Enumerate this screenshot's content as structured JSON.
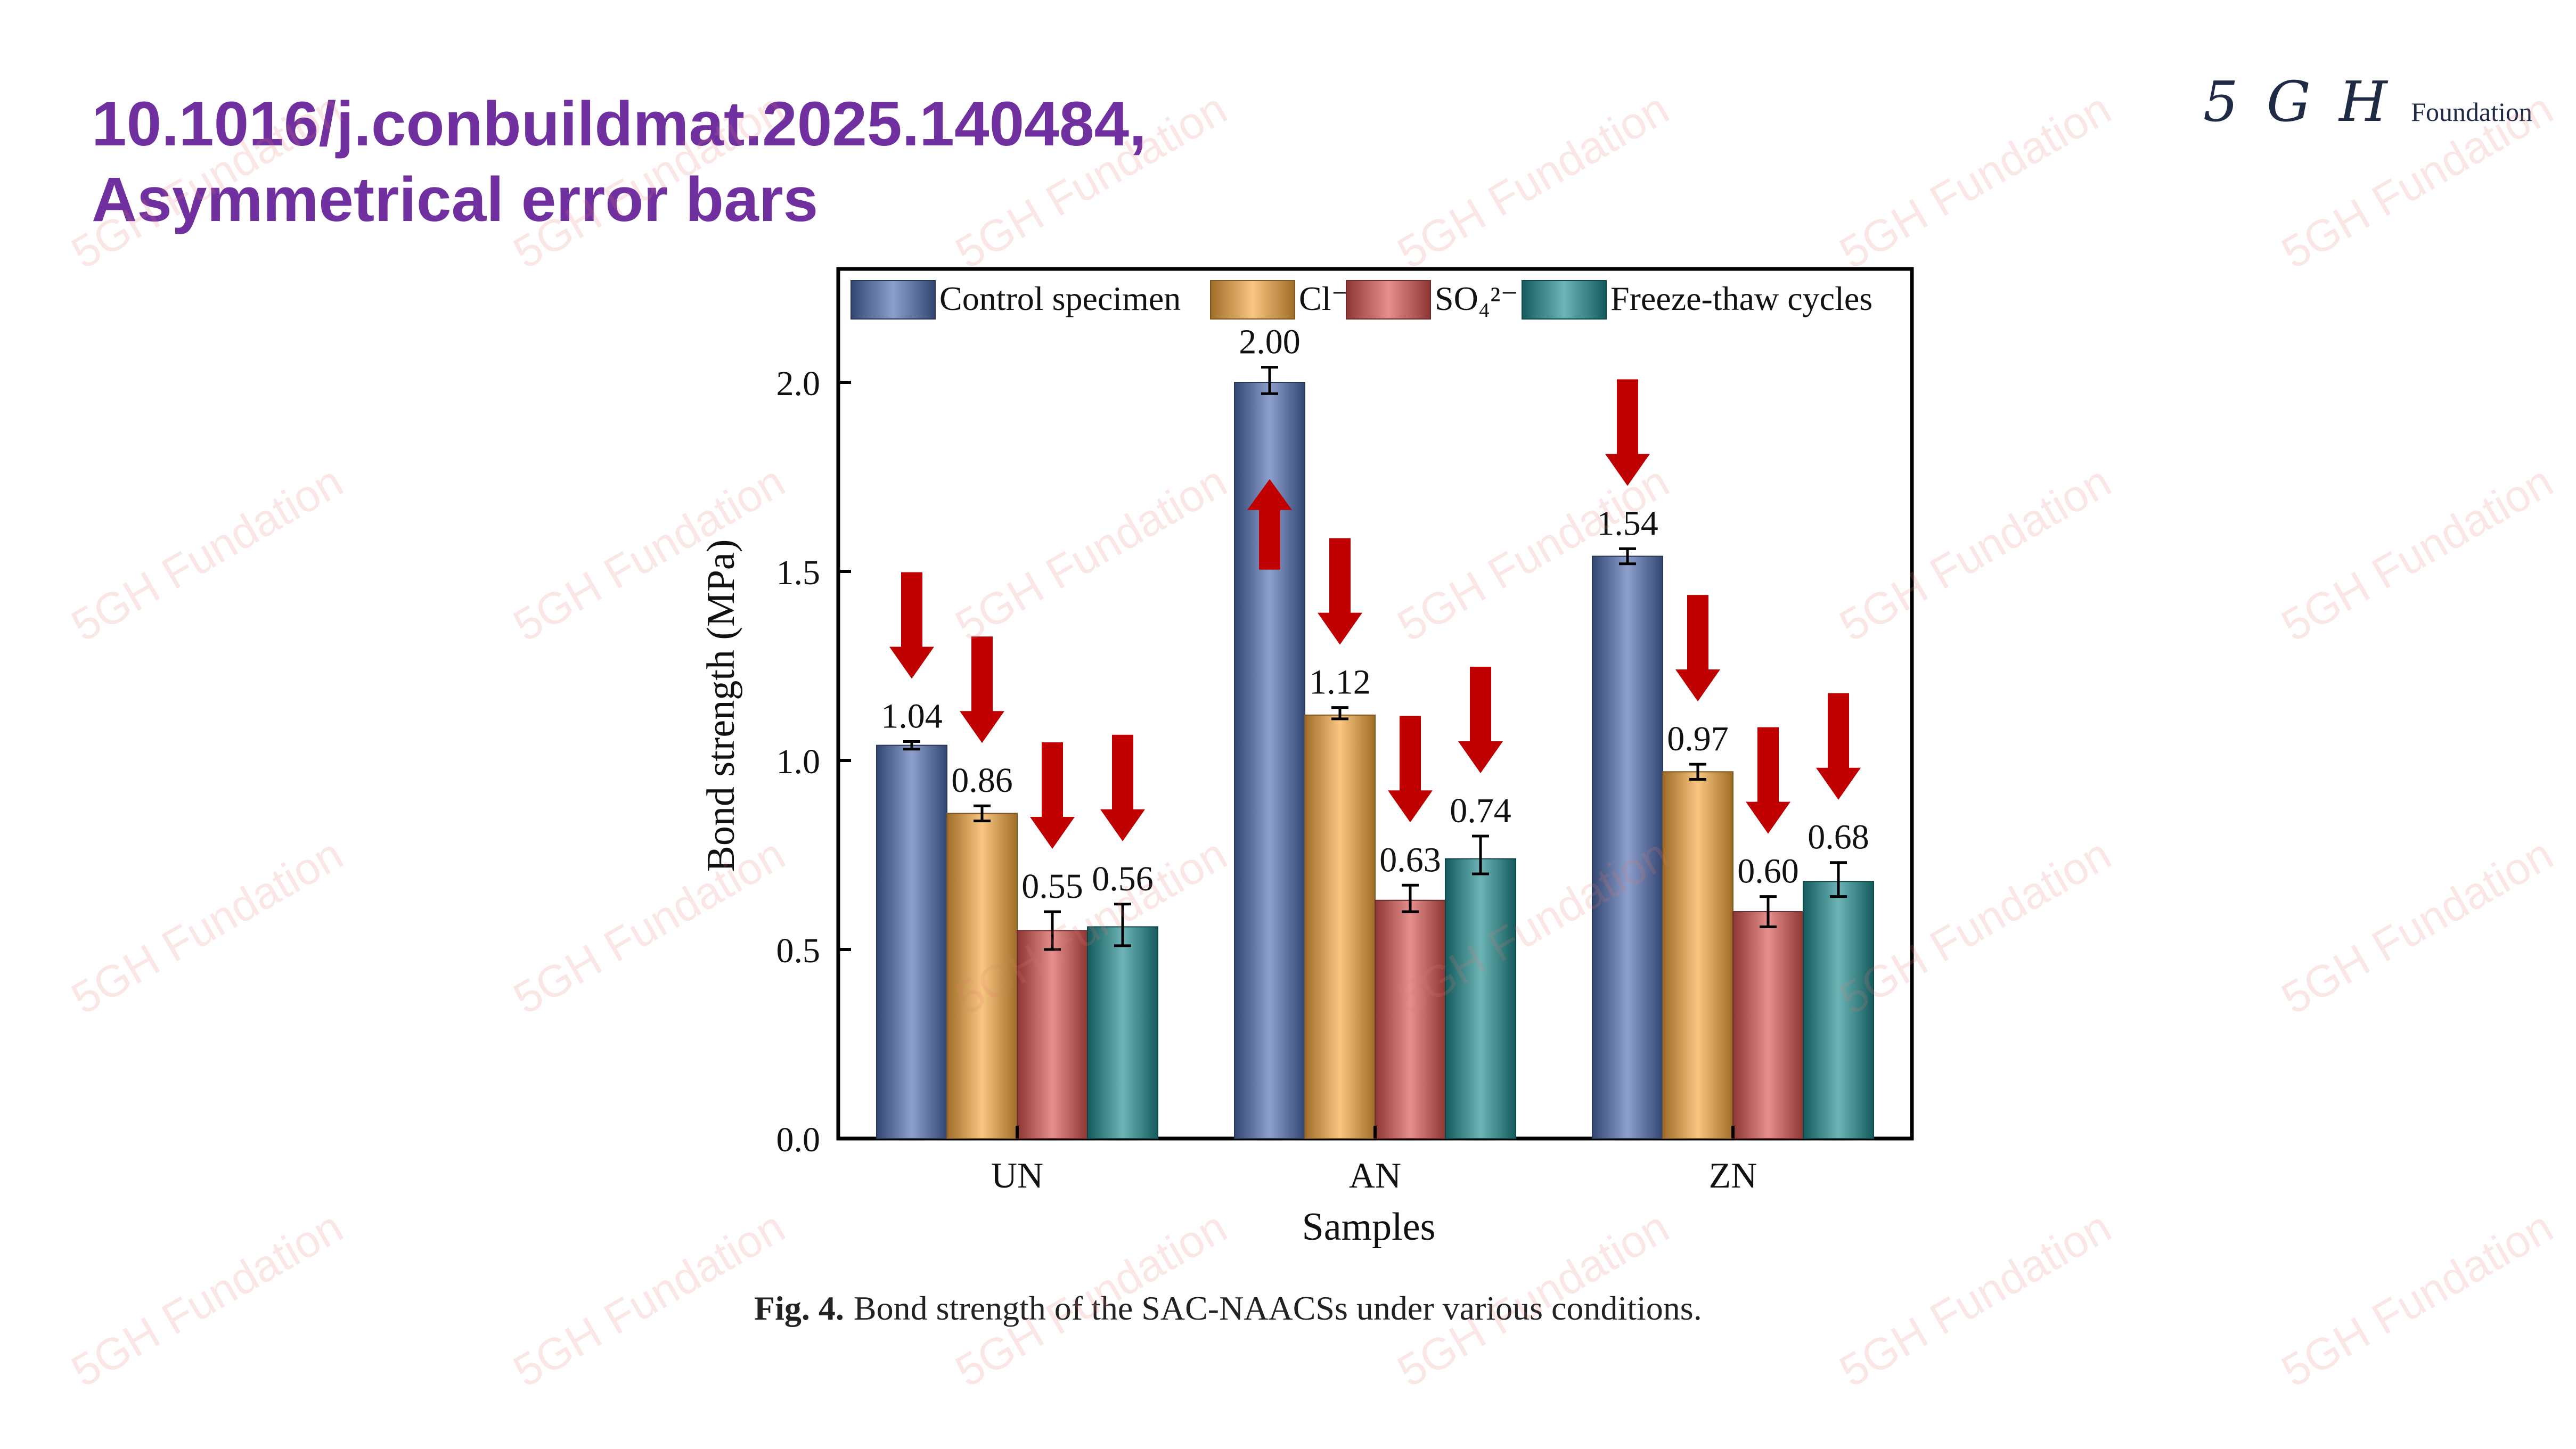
{
  "slide": {
    "title_line1": "10.1016/j.conbuildmat.2025.140484,",
    "title_line2": "Asymmetrical error bars",
    "logo_mark": "5 G H",
    "logo_word": "Foundation",
    "watermark": "5GH Fundation",
    "caption_label": "Fig. 4.",
    "caption_text": "Bond strength of the SAC-NAACSs under various conditions.",
    "title_color": "#7030a0"
  },
  "chart_data": {
    "type": "bar",
    "xlabel": "Samples",
    "ylabel": "Bond strength (MPa)",
    "ylim": [
      0,
      2.3
    ],
    "yticks": [
      "0.0",
      "0.5",
      "1.0",
      "1.5",
      "2.0"
    ],
    "categories": [
      "UN",
      "AN",
      "ZN"
    ],
    "legend_position": "top",
    "series": [
      {
        "name": "Control specimen",
        "color": "#4f6bb0",
        "values": [
          1.04,
          2.0,
          1.54
        ],
        "labels": [
          "1.04",
          "2.00",
          "1.54"
        ],
        "err_low": [
          0.01,
          0.03,
          0.02
        ],
        "err_high": [
          0.01,
          0.04,
          0.02
        ]
      },
      {
        "name": "Cl⁻",
        "color": "#f5a83e",
        "values": [
          0.86,
          1.12,
          0.97
        ],
        "labels": [
          "0.86",
          "1.12",
          "0.97"
        ],
        "err_low": [
          0.02,
          0.01,
          0.02
        ],
        "err_high": [
          0.02,
          0.02,
          0.02
        ]
      },
      {
        "name": "SO₄²⁻",
        "color": "#d9534f",
        "values": [
          0.55,
          0.63,
          0.6
        ],
        "labels": [
          "0.55",
          "0.63",
          "0.60"
        ],
        "err_low": [
          0.05,
          0.03,
          0.04
        ],
        "err_high": [
          0.05,
          0.04,
          0.04
        ]
      },
      {
        "name": "Freeze-thaw cycles",
        "color": "#1e8c8f",
        "values": [
          0.56,
          0.74,
          0.68
        ],
        "labels": [
          "0.56",
          "0.74",
          "0.68"
        ],
        "err_low": [
          0.05,
          0.04,
          0.04
        ],
        "err_high": [
          0.06,
          0.06,
          0.05
        ]
      }
    ],
    "annotations": {
      "arrow_color": "#c00000",
      "arrows": [
        [
          "down",
          "down",
          "down",
          "down"
        ],
        [
          "up",
          "down",
          "down",
          "down"
        ],
        [
          "down",
          "down",
          "down",
          "down"
        ]
      ]
    }
  }
}
